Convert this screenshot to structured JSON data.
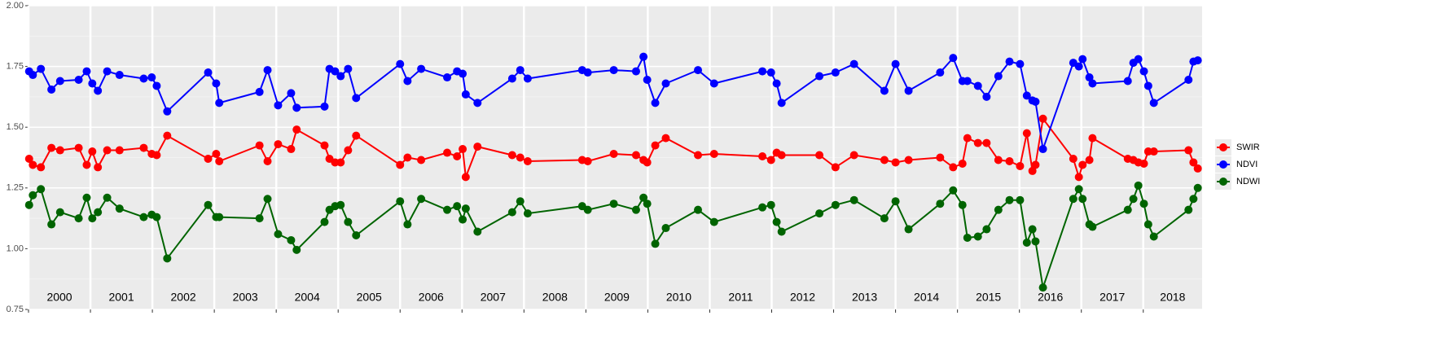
{
  "chart_data": {
    "type": "line",
    "x": [
      2000.01,
      2000.07,
      2000.2,
      2000.37,
      2000.51,
      2000.81,
      2000.94,
      2001.03,
      2001.12,
      2001.27,
      2001.47,
      2001.86,
      2001.99,
      2002.07,
      2002.24,
      2002.9,
      2003.03,
      2003.08,
      2003.73,
      2003.86,
      2004.03,
      2004.24,
      2004.33,
      2004.78,
      2004.86,
      2004.95,
      2005.04,
      2005.16,
      2005.29,
      2006.0,
      2006.12,
      2006.34,
      2006.76,
      2006.92,
      2007.01,
      2007.06,
      2007.25,
      2007.81,
      2007.94,
      2008.06,
      2008.94,
      2009.03,
      2009.45,
      2009.81,
      2009.93,
      2009.99,
      2010.12,
      2010.29,
      2010.81,
      2011.07,
      2011.85,
      2011.99,
      2012.08,
      2012.16,
      2012.77,
      2013.03,
      2013.33,
      2013.82,
      2014.0,
      2014.21,
      2014.72,
      2014.93,
      2015.08,
      2015.16,
      2015.33,
      2015.47,
      2015.66,
      2015.84,
      2016.01,
      2016.12,
      2016.21,
      2016.26,
      2016.38,
      2016.87,
      2016.96,
      2017.02,
      2017.13,
      2017.18,
      2017.75,
      2017.84,
      2017.92,
      2018.01,
      2018.08,
      2018.17,
      2018.73,
      2018.81,
      2018.88
    ],
    "series": [
      {
        "name": "SWIR",
        "color": "#ff0000",
        "values": [
          1.37,
          1.345,
          1.335,
          1.415,
          1.405,
          1.415,
          1.345,
          1.4,
          1.335,
          1.405,
          1.405,
          1.415,
          1.39,
          1.385,
          1.465,
          1.37,
          1.39,
          1.36,
          1.425,
          1.36,
          1.43,
          1.41,
          1.49,
          1.425,
          1.37,
          1.355,
          1.355,
          1.405,
          1.465,
          1.345,
          1.375,
          1.365,
          1.395,
          1.38,
          1.41,
          1.295,
          1.42,
          1.385,
          1.375,
          1.36,
          1.365,
          1.36,
          1.39,
          1.385,
          1.365,
          1.355,
          1.425,
          1.455,
          1.385,
          1.39,
          1.38,
          1.365,
          1.395,
          1.385,
          1.385,
          1.335,
          1.385,
          1.365,
          1.355,
          1.365,
          1.375,
          1.335,
          1.35,
          1.455,
          1.435,
          1.435,
          1.365,
          1.36,
          1.34,
          1.475,
          1.32,
          1.345,
          1.535,
          1.37,
          1.295,
          1.345,
          1.365,
          1.455,
          1.37,
          1.365,
          1.355,
          1.35,
          1.4,
          1.4,
          1.405,
          1.355,
          1.33
        ]
      },
      {
        "name": "NDVI",
        "color": "#0000ff",
        "values": [
          1.73,
          1.715,
          1.74,
          1.655,
          1.69,
          1.695,
          1.73,
          1.68,
          1.65,
          1.73,
          1.715,
          1.7,
          1.705,
          1.67,
          1.565,
          1.725,
          1.68,
          1.6,
          1.645,
          1.735,
          1.59,
          1.64,
          1.58,
          1.585,
          1.74,
          1.73,
          1.71,
          1.74,
          1.62,
          1.76,
          1.69,
          1.74,
          1.705,
          1.73,
          1.72,
          1.635,
          1.6,
          1.7,
          1.735,
          1.7,
          1.735,
          1.725,
          1.735,
          1.73,
          1.79,
          1.695,
          1.6,
          1.68,
          1.735,
          1.68,
          1.73,
          1.725,
          1.68,
          1.6,
          1.71,
          1.725,
          1.76,
          1.65,
          1.76,
          1.65,
          1.725,
          1.785,
          1.69,
          1.69,
          1.67,
          1.625,
          1.71,
          1.77,
          1.76,
          1.63,
          1.61,
          1.605,
          1.41,
          1.765,
          1.75,
          1.78,
          1.705,
          1.68,
          1.69,
          1.765,
          1.78,
          1.73,
          1.67,
          1.6,
          1.695,
          1.77,
          1.775
        ]
      },
      {
        "name": "NDWI",
        "color": "#006400",
        "values": [
          1.18,
          1.22,
          1.245,
          1.1,
          1.15,
          1.125,
          1.21,
          1.125,
          1.15,
          1.21,
          1.165,
          1.13,
          1.14,
          1.13,
          0.96,
          1.18,
          1.13,
          1.13,
          1.125,
          1.205,
          1.06,
          1.035,
          0.995,
          1.11,
          1.16,
          1.175,
          1.18,
          1.11,
          1.055,
          1.195,
          1.1,
          1.205,
          1.16,
          1.175,
          1.12,
          1.165,
          1.07,
          1.15,
          1.195,
          1.145,
          1.175,
          1.16,
          1.185,
          1.16,
          1.21,
          1.185,
          1.02,
          1.085,
          1.16,
          1.11,
          1.17,
          1.18,
          1.11,
          1.07,
          1.145,
          1.18,
          1.2,
          1.125,
          1.195,
          1.08,
          1.185,
          1.24,
          1.18,
          1.045,
          1.05,
          1.08,
          1.16,
          1.2,
          1.2,
          1.025,
          1.08,
          1.03,
          0.84,
          1.205,
          1.245,
          1.205,
          1.1,
          1.09,
          1.16,
          1.205,
          1.26,
          1.185,
          1.1,
          1.05,
          1.16,
          1.205,
          1.25
        ]
      }
    ],
    "xlim": [
      2000,
      2018.95
    ],
    "xticks": [
      2000,
      2001,
      2002,
      2003,
      2004,
      2005,
      2006,
      2007,
      2008,
      2009,
      2010,
      2011,
      2012,
      2013,
      2014,
      2015,
      2016,
      2017,
      2018
    ],
    "ylim": [
      0.75,
      2.0
    ],
    "yticks": [
      {
        "value": 0.75,
        "label": "0.75"
      },
      {
        "value": 1.0,
        "label": "1.00"
      },
      {
        "value": 1.25,
        "label": "1.25"
      },
      {
        "value": 1.5,
        "label": "1.50"
      },
      {
        "value": 1.75,
        "label": "1.75"
      },
      {
        "value": 2.0,
        "label": "2.00"
      }
    ],
    "grid": true,
    "legend": "right"
  }
}
